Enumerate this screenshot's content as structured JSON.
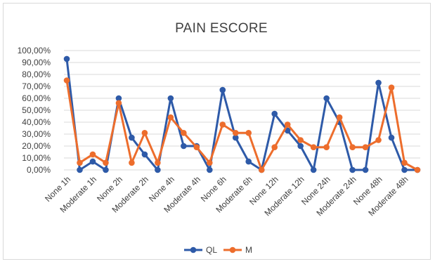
{
  "chart_data": {
    "type": "line",
    "title": "PAIN ESCORE",
    "xlabel": "",
    "ylabel": "",
    "ylim": [
      0,
      100
    ],
    "y_tick_labels": [
      "0,00%",
      "10,00%",
      "20,00%",
      "30,00%",
      "40,00%",
      "50,00%",
      "60,00%",
      "70,00%",
      "80,00%",
      "90,00%",
      "100,00%"
    ],
    "grid": true,
    "legend_position": "bottom",
    "x_labels": [
      "None 1h",
      "Moderate 1h",
      "None 2h",
      "Moderate 2h",
      "None 4h",
      "Moderate 4h",
      "None 6h",
      "Moderate 6h",
      "None 12h",
      "Moderate 12h",
      "None 24h",
      "Moderate 24h",
      "None 48h",
      "Moderate 48h"
    ],
    "series": [
      {
        "name": "QL",
        "color": "#2e5aa8",
        "values": [
          93,
          0,
          7,
          0,
          60,
          27,
          13,
          0,
          60,
          20,
          20,
          0,
          67,
          27,
          7,
          0,
          47,
          33,
          20,
          0,
          60,
          40,
          0,
          0,
          73,
          27,
          0,
          0
        ]
      },
      {
        "name": "M",
        "color": "#ed6d2c",
        "values": [
          75,
          6,
          13,
          6,
          56,
          6,
          31,
          6,
          44,
          31,
          19,
          6,
          38,
          31,
          31,
          0,
          19,
          38,
          25,
          19,
          19,
          44,
          19,
          19,
          25,
          69,
          6,
          0
        ]
      }
    ]
  }
}
